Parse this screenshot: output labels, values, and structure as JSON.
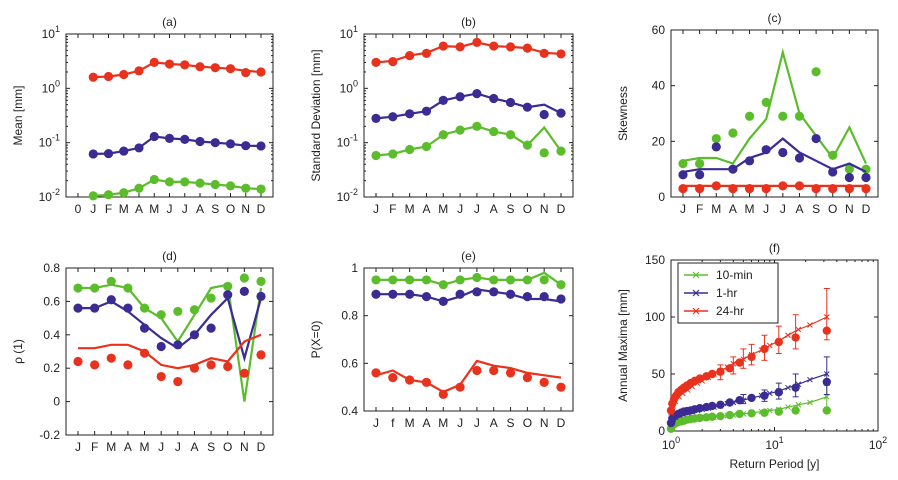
{
  "colors": {
    "green": "#5cbd2c",
    "blue": "#3a2c92",
    "red": "#e8321e",
    "axis": "#222222"
  },
  "chart_data": [
    {
      "id": "a",
      "type": "line",
      "panel_label": "(a)",
      "ylabel": "Mean [mm]",
      "yscale": "log",
      "ylim": [
        0.01,
        10
      ],
      "xticks": [
        "0",
        "J",
        "F",
        "M",
        "A",
        "M",
        "J",
        "J",
        "A",
        "S",
        "O",
        "N",
        "D"
      ],
      "yticks": [
        {
          "v": 0.01,
          "b": "10",
          "e": "-2"
        },
        {
          "v": 0.1,
          "b": "10",
          "e": "-1"
        },
        {
          "v": 1,
          "b": "10",
          "e": "0"
        },
        {
          "v": 10,
          "b": "10",
          "e": "1"
        }
      ],
      "series": [
        {
          "color": "red",
          "line": [
            1.6,
            1.65,
            1.8,
            2.1,
            3.0,
            2.8,
            2.7,
            2.5,
            2.4,
            2.3,
            2.1,
            2.0
          ],
          "points": [
            1.6,
            1.65,
            1.8,
            2.1,
            3.0,
            2.8,
            2.7,
            2.5,
            2.4,
            2.3,
            1.95,
            2.0
          ]
        },
        {
          "color": "blue",
          "line": [
            0.062,
            0.063,
            0.07,
            0.08,
            0.13,
            0.12,
            0.115,
            0.105,
            0.1,
            0.095,
            0.088,
            0.087
          ],
          "points": [
            0.062,
            0.063,
            0.07,
            0.08,
            0.13,
            0.12,
            0.115,
            0.105,
            0.1,
            0.095,
            0.088,
            0.087
          ]
        },
        {
          "color": "green",
          "line": [
            0.0105,
            0.011,
            0.012,
            0.0145,
            0.021,
            0.019,
            0.019,
            0.018,
            0.017,
            0.016,
            0.0145,
            0.014
          ],
          "points": [
            0.0105,
            0.011,
            0.012,
            0.0145,
            0.021,
            0.019,
            0.019,
            0.018,
            0.017,
            0.016,
            0.0145,
            0.014
          ]
        }
      ]
    },
    {
      "id": "b",
      "type": "line",
      "panel_label": "(b)",
      "ylabel": "Standard Deviation [mm]",
      "yscale": "log",
      "ylim": [
        0.01,
        10
      ],
      "xticks": [
        "J",
        "F",
        "M",
        "A",
        "M",
        "J",
        "J",
        "A",
        "S",
        "O",
        "N",
        "D"
      ],
      "yticks": [
        {
          "v": 0.01,
          "b": "10",
          "e": "-2"
        },
        {
          "v": 0.1,
          "b": "10",
          "e": "-1"
        },
        {
          "v": 1,
          "b": "10",
          "e": "0"
        },
        {
          "v": 10,
          "b": "10",
          "e": "1"
        }
      ],
      "series": [
        {
          "color": "red",
          "line": [
            3.0,
            3.2,
            4.0,
            4.5,
            6.0,
            5.8,
            7.0,
            6.0,
            5.8,
            5.5,
            4.5,
            4.3
          ],
          "points": [
            3.0,
            3.1,
            4.0,
            4.4,
            6.0,
            5.8,
            7.0,
            6.0,
            5.8,
            5.5,
            4.4,
            4.3
          ]
        },
        {
          "color": "blue",
          "line": [
            0.28,
            0.3,
            0.34,
            0.38,
            0.6,
            0.7,
            0.8,
            0.65,
            0.55,
            0.45,
            0.5,
            0.35
          ],
          "points": [
            0.28,
            0.3,
            0.34,
            0.38,
            0.6,
            0.7,
            0.8,
            0.65,
            0.55,
            0.45,
            0.33,
            0.35
          ]
        },
        {
          "color": "green",
          "line": [
            0.058,
            0.062,
            0.075,
            0.085,
            0.14,
            0.17,
            0.2,
            0.16,
            0.14,
            0.09,
            0.19,
            0.07
          ],
          "points": [
            0.058,
            0.062,
            0.075,
            0.085,
            0.14,
            0.17,
            0.2,
            0.16,
            0.14,
            0.09,
            0.065,
            0.07
          ]
        }
      ]
    },
    {
      "id": "c",
      "type": "line",
      "panel_label": "(c)",
      "ylabel": "Skewness",
      "yscale": "linear",
      "ylim": [
        0,
        60
      ],
      "xticks": [
        "J",
        "F",
        "M",
        "A",
        "M",
        "J",
        "J",
        "A",
        "S",
        "O",
        "N",
        "D"
      ],
      "yticks": [
        {
          "v": 0,
          "t": "0"
        },
        {
          "v": 20,
          "t": "20"
        },
        {
          "v": 40,
          "t": "40"
        },
        {
          "v": 60,
          "t": "60"
        }
      ],
      "series": [
        {
          "color": "green",
          "line": [
            13,
            14,
            14,
            12,
            21,
            28,
            52,
            30,
            22,
            14,
            25,
            12
          ],
          "points": [
            12,
            12,
            21,
            23,
            29,
            34,
            29,
            29,
            45,
            15,
            10,
            10
          ]
        },
        {
          "color": "blue",
          "line": [
            9,
            10,
            10,
            10,
            14,
            16,
            21,
            16,
            13,
            10,
            12,
            9
          ],
          "points": [
            8,
            8,
            18,
            10,
            13,
            17,
            16,
            14,
            21,
            9,
            7,
            7
          ]
        },
        {
          "color": "red",
          "line": [
            4,
            4,
            4,
            4,
            4,
            4,
            4,
            4,
            4,
            4,
            4,
            4
          ],
          "points": [
            3,
            3,
            4,
            3,
            3,
            3,
            4,
            4,
            3,
            3,
            3,
            3
          ]
        }
      ]
    },
    {
      "id": "d",
      "type": "line",
      "panel_label": "(d)",
      "ylabel": "ρ (1)",
      "yscale": "linear",
      "ylim": [
        -0.2,
        0.8
      ],
      "xticks": [
        "J",
        "F",
        "M",
        "A",
        "M",
        "J",
        "J",
        "A",
        "S",
        "O",
        "N",
        "D"
      ],
      "yticks": [
        {
          "v": -0.2,
          "t": "-0.2"
        },
        {
          "v": 0,
          "t": "0"
        },
        {
          "v": 0.2,
          "t": "0.2"
        },
        {
          "v": 0.4,
          "t": "0.4"
        },
        {
          "v": 0.6,
          "t": "0.6"
        },
        {
          "v": 0.8,
          "t": "0.8"
        }
      ],
      "series": [
        {
          "color": "green",
          "line": [
            0.68,
            0.68,
            0.7,
            0.68,
            0.56,
            0.5,
            0.36,
            0.52,
            0.68,
            0.7,
            0.0,
            0.68
          ],
          "points": [
            0.68,
            0.68,
            0.72,
            0.68,
            0.56,
            0.52,
            0.54,
            0.55,
            0.62,
            0.69,
            0.74,
            0.72
          ]
        },
        {
          "color": "blue",
          "line": [
            0.56,
            0.56,
            0.6,
            0.54,
            0.46,
            0.38,
            0.32,
            0.4,
            0.52,
            0.62,
            0.26,
            0.62
          ],
          "points": [
            0.56,
            0.56,
            0.61,
            0.56,
            0.44,
            0.33,
            0.34,
            0.4,
            0.44,
            0.64,
            0.66,
            0.63
          ]
        },
        {
          "color": "red",
          "line": [
            0.32,
            0.32,
            0.34,
            0.34,
            0.3,
            0.22,
            0.2,
            0.22,
            0.26,
            0.24,
            0.36,
            0.4
          ],
          "points": [
            0.24,
            0.22,
            0.26,
            0.22,
            0.29,
            0.15,
            0.12,
            0.2,
            0.22,
            0.21,
            0.17,
            0.28
          ]
        }
      ]
    },
    {
      "id": "e",
      "type": "line",
      "panel_label": "(e)",
      "ylabel": "P(X=0)",
      "yscale": "linear",
      "ylim": [
        0.4,
        1.0
      ],
      "xticks": [
        "J",
        "f",
        "M",
        "A",
        "M",
        "J",
        "J",
        "A",
        "S",
        "O",
        "N",
        "D"
      ],
      "yticks": [
        {
          "v": 0.4,
          "t": "0.4"
        },
        {
          "v": 0.6,
          "t": "0.6"
        },
        {
          "v": 0.8,
          "t": "0.8"
        },
        {
          "v": 1.0,
          "t": "1"
        }
      ],
      "series": [
        {
          "color": "green",
          "line": [
            0.95,
            0.95,
            0.95,
            0.95,
            0.93,
            0.95,
            0.96,
            0.95,
            0.95,
            0.95,
            0.98,
            0.93
          ],
          "points": [
            0.95,
            0.95,
            0.95,
            0.95,
            0.93,
            0.95,
            0.96,
            0.95,
            0.95,
            0.95,
            0.95,
            0.93
          ]
        },
        {
          "color": "blue",
          "line": [
            0.89,
            0.89,
            0.89,
            0.88,
            0.86,
            0.88,
            0.91,
            0.9,
            0.89,
            0.87,
            0.87,
            0.86
          ],
          "points": [
            0.89,
            0.89,
            0.89,
            0.88,
            0.86,
            0.89,
            0.9,
            0.9,
            0.89,
            0.88,
            0.88,
            0.87
          ]
        },
        {
          "color": "red",
          "line": [
            0.55,
            0.57,
            0.53,
            0.52,
            0.48,
            0.51,
            0.61,
            0.59,
            0.58,
            0.56,
            0.55,
            0.54
          ],
          "points": [
            0.56,
            0.54,
            0.53,
            0.52,
            0.47,
            0.5,
            0.57,
            0.57,
            0.56,
            0.54,
            0.52,
            0.5
          ]
        }
      ]
    },
    {
      "id": "f",
      "type": "scatter",
      "panel_label": "(f)",
      "xlabel": "Return Period [y]",
      "ylabel": "Annual Maxima [mm]",
      "xscale": "log",
      "xlim": [
        1,
        100
      ],
      "ylim": [
        0,
        150
      ],
      "xticks": [
        {
          "v": 1,
          "b": "10",
          "e": "0"
        },
        {
          "v": 10,
          "b": "10",
          "e": "1"
        },
        {
          "v": 100,
          "b": "10",
          "e": "2"
        }
      ],
      "yticks": [
        {
          "v": 0,
          "t": "0"
        },
        {
          "v": 50,
          "t": "50"
        },
        {
          "v": 100,
          "t": "100"
        },
        {
          "v": 150,
          "t": "150"
        }
      ],
      "legend": [
        "10-min",
        "1-hr",
        "24-hr"
      ],
      "series": [
        {
          "color": "green",
          "name": "10-min",
          "model_x": [
            1.0,
            1.05,
            1.1,
            1.2,
            1.3,
            1.45,
            1.6,
            1.8,
            2.0,
            2.3,
            2.6,
            3.0,
            3.5,
            4.0,
            5.0,
            6.0,
            7.5,
            9.0,
            11,
            13.5,
            17,
            22,
            32
          ],
          "model_y": [
            3,
            5,
            6,
            7,
            8,
            9,
            9.5,
            10,
            11,
            11.5,
            12,
            13,
            13.5,
            14,
            15,
            16,
            17,
            18,
            19,
            21,
            23,
            25,
            30
          ],
          "ci": [
            {
              "x": 32,
              "lo": 20,
              "hi": 40
            }
          ],
          "obs_x": [
            1.0,
            1.03,
            1.07,
            1.12,
            1.18,
            1.25,
            1.33,
            1.43,
            1.55,
            1.7,
            1.9,
            2.2,
            2.5,
            3.0,
            3.7,
            4.6,
            6,
            8,
            11,
            16,
            32
          ],
          "obs_y": [
            2,
            5,
            6,
            7,
            8,
            8.5,
            9,
            10,
            10.5,
            11,
            11.5,
            12,
            12.5,
            13,
            14,
            15,
            15.5,
            16,
            17,
            18,
            18
          ]
        },
        {
          "color": "blue",
          "name": "1-hr",
          "model_x": [
            1.0,
            1.05,
            1.1,
            1.2,
            1.3,
            1.45,
            1.6,
            1.8,
            2.0,
            2.3,
            2.6,
            3.0,
            3.5,
            4.0,
            5.0,
            6.0,
            7.5,
            9.0,
            11,
            13.5,
            17,
            22,
            32
          ],
          "model_y": [
            7,
            10,
            12,
            14,
            15,
            16,
            17,
            18,
            19,
            20,
            21,
            22,
            24,
            25,
            27,
            29,
            31,
            33,
            35,
            38,
            41,
            45,
            50
          ],
          "ci": [
            {
              "x": 5,
              "lo": 24,
              "hi": 32
            },
            {
              "x": 8,
              "lo": 26,
              "hi": 36
            },
            {
              "x": 11,
              "lo": 28,
              "hi": 42
            },
            {
              "x": 16,
              "lo": 30,
              "hi": 50
            },
            {
              "x": 32,
              "lo": 32,
              "hi": 65
            }
          ],
          "obs_x": [
            1.0,
            1.03,
            1.07,
            1.12,
            1.18,
            1.25,
            1.33,
            1.43,
            1.55,
            1.7,
            1.9,
            2.2,
            2.5,
            3.0,
            3.7,
            4.6,
            6,
            8,
            11,
            16,
            32
          ],
          "obs_y": [
            7,
            11,
            13,
            14,
            15,
            16,
            17,
            17.5,
            18,
            19,
            20,
            21,
            22,
            23,
            25,
            27,
            29,
            31,
            34,
            38,
            43
          ]
        },
        {
          "color": "red",
          "name": "24-hr",
          "model_x": [
            1.0,
            1.05,
            1.1,
            1.2,
            1.3,
            1.45,
            1.6,
            1.8,
            2.0,
            2.3,
            2.6,
            3.0,
            3.5,
            4.0,
            5.0,
            6.0,
            7.5,
            9.0,
            11,
            13.5,
            17,
            22,
            32
          ],
          "model_y": [
            16,
            22,
            26,
            30,
            33,
            36,
            39,
            42,
            44,
            47,
            50,
            53,
            56,
            59,
            63,
            67,
            71,
            75,
            79,
            84,
            89,
            93,
            100
          ],
          "ci": [
            {
              "x": 3,
              "lo": 45,
              "hi": 58
            },
            {
              "x": 4,
              "lo": 50,
              "hi": 65
            },
            {
              "x": 5,
              "lo": 55,
              "hi": 72
            },
            {
              "x": 6,
              "lo": 58,
              "hi": 76
            },
            {
              "x": 8,
              "lo": 62,
              "hi": 84
            },
            {
              "x": 11,
              "lo": 68,
              "hi": 92
            },
            {
              "x": 16,
              "lo": 72,
              "hi": 102
            },
            {
              "x": 32,
              "lo": 80,
              "hi": 125
            }
          ],
          "obs_x": [
            1.0,
            1.03,
            1.07,
            1.12,
            1.18,
            1.25,
            1.33,
            1.43,
            1.55,
            1.7,
            1.9,
            2.2,
            2.5,
            3.0,
            3.7,
            4.6,
            6,
            8,
            11,
            16,
            32
          ],
          "obs_y": [
            18,
            24,
            28,
            31,
            34,
            36,
            38,
            40,
            42,
            44,
            46,
            48,
            50,
            52,
            55,
            60,
            65,
            72,
            78,
            82,
            88
          ]
        }
      ]
    }
  ]
}
